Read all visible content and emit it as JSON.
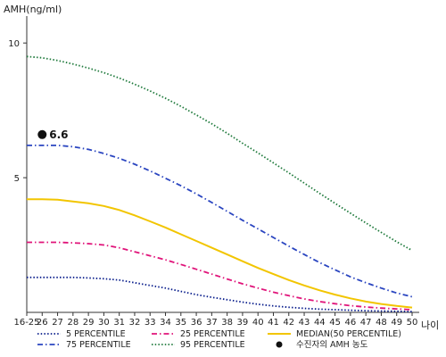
{
  "chart_data": {
    "type": "line",
    "ylabel": "AMH(ng/ml)",
    "xlabel": "나이",
    "categories": [
      "16-25",
      "26",
      "27",
      "28",
      "29",
      "30",
      "31",
      "32",
      "33",
      "34",
      "35",
      "36",
      "37",
      "38",
      "39",
      "40",
      "41",
      "42",
      "43",
      "44",
      "45",
      "46",
      "47",
      "48",
      "49",
      "50"
    ],
    "ylim": [
      0,
      11
    ],
    "yticks": [
      5,
      10
    ],
    "grid": false,
    "legend_position": "bottom",
    "series": [
      {
        "name": "5 PERCENTILE",
        "color": "#0a1e8c",
        "style": "dotted",
        "values": [
          1.3,
          1.3,
          1.3,
          1.3,
          1.28,
          1.25,
          1.2,
          1.1,
          1.0,
          0.9,
          0.78,
          0.66,
          0.56,
          0.47,
          0.38,
          0.3,
          0.24,
          0.19,
          0.15,
          0.12,
          0.1,
          0.08,
          0.06,
          0.05,
          0.04,
          0.03
        ]
      },
      {
        "name": "25 PERCENTILE",
        "color": "#e0147a",
        "style": "dashdot",
        "values": [
          2.6,
          2.6,
          2.6,
          2.58,
          2.55,
          2.5,
          2.4,
          2.25,
          2.1,
          1.95,
          1.78,
          1.6,
          1.42,
          1.24,
          1.06,
          0.9,
          0.75,
          0.62,
          0.5,
          0.4,
          0.32,
          0.25,
          0.2,
          0.16,
          0.13,
          0.1
        ]
      },
      {
        "name": "MEDIAN(50 PERCENTILE)",
        "color": "#f2c500",
        "style": "solid",
        "values": [
          4.2,
          4.2,
          4.18,
          4.12,
          4.05,
          3.95,
          3.8,
          3.6,
          3.38,
          3.15,
          2.9,
          2.65,
          2.4,
          2.15,
          1.9,
          1.65,
          1.42,
          1.2,
          1.0,
          0.82,
          0.66,
          0.52,
          0.4,
          0.31,
          0.24,
          0.18
        ]
      },
      {
        "name": "75 PERCENTILE",
        "color": "#2a45c0",
        "style": "dashdot",
        "values": [
          6.2,
          6.2,
          6.2,
          6.15,
          6.05,
          5.9,
          5.72,
          5.5,
          5.25,
          4.98,
          4.7,
          4.4,
          4.08,
          3.75,
          3.42,
          3.1,
          2.78,
          2.46,
          2.15,
          1.85,
          1.58,
          1.32,
          1.1,
          0.9,
          0.72,
          0.58
        ]
      },
      {
        "name": "95 PERCENTILE",
        "color": "#1f7a3c",
        "style": "dotted",
        "values": [
          9.5,
          9.45,
          9.35,
          9.22,
          9.07,
          8.9,
          8.7,
          8.47,
          8.22,
          7.95,
          7.65,
          7.33,
          7.0,
          6.65,
          6.28,
          5.92,
          5.55,
          5.18,
          4.8,
          4.42,
          4.05,
          3.68,
          3.32,
          2.97,
          2.62,
          2.3
        ]
      }
    ],
    "marker": {
      "name": "수진자의 AMH 농도",
      "category": "26",
      "value": 6.6,
      "label": "6.6",
      "color": "#111111"
    }
  }
}
